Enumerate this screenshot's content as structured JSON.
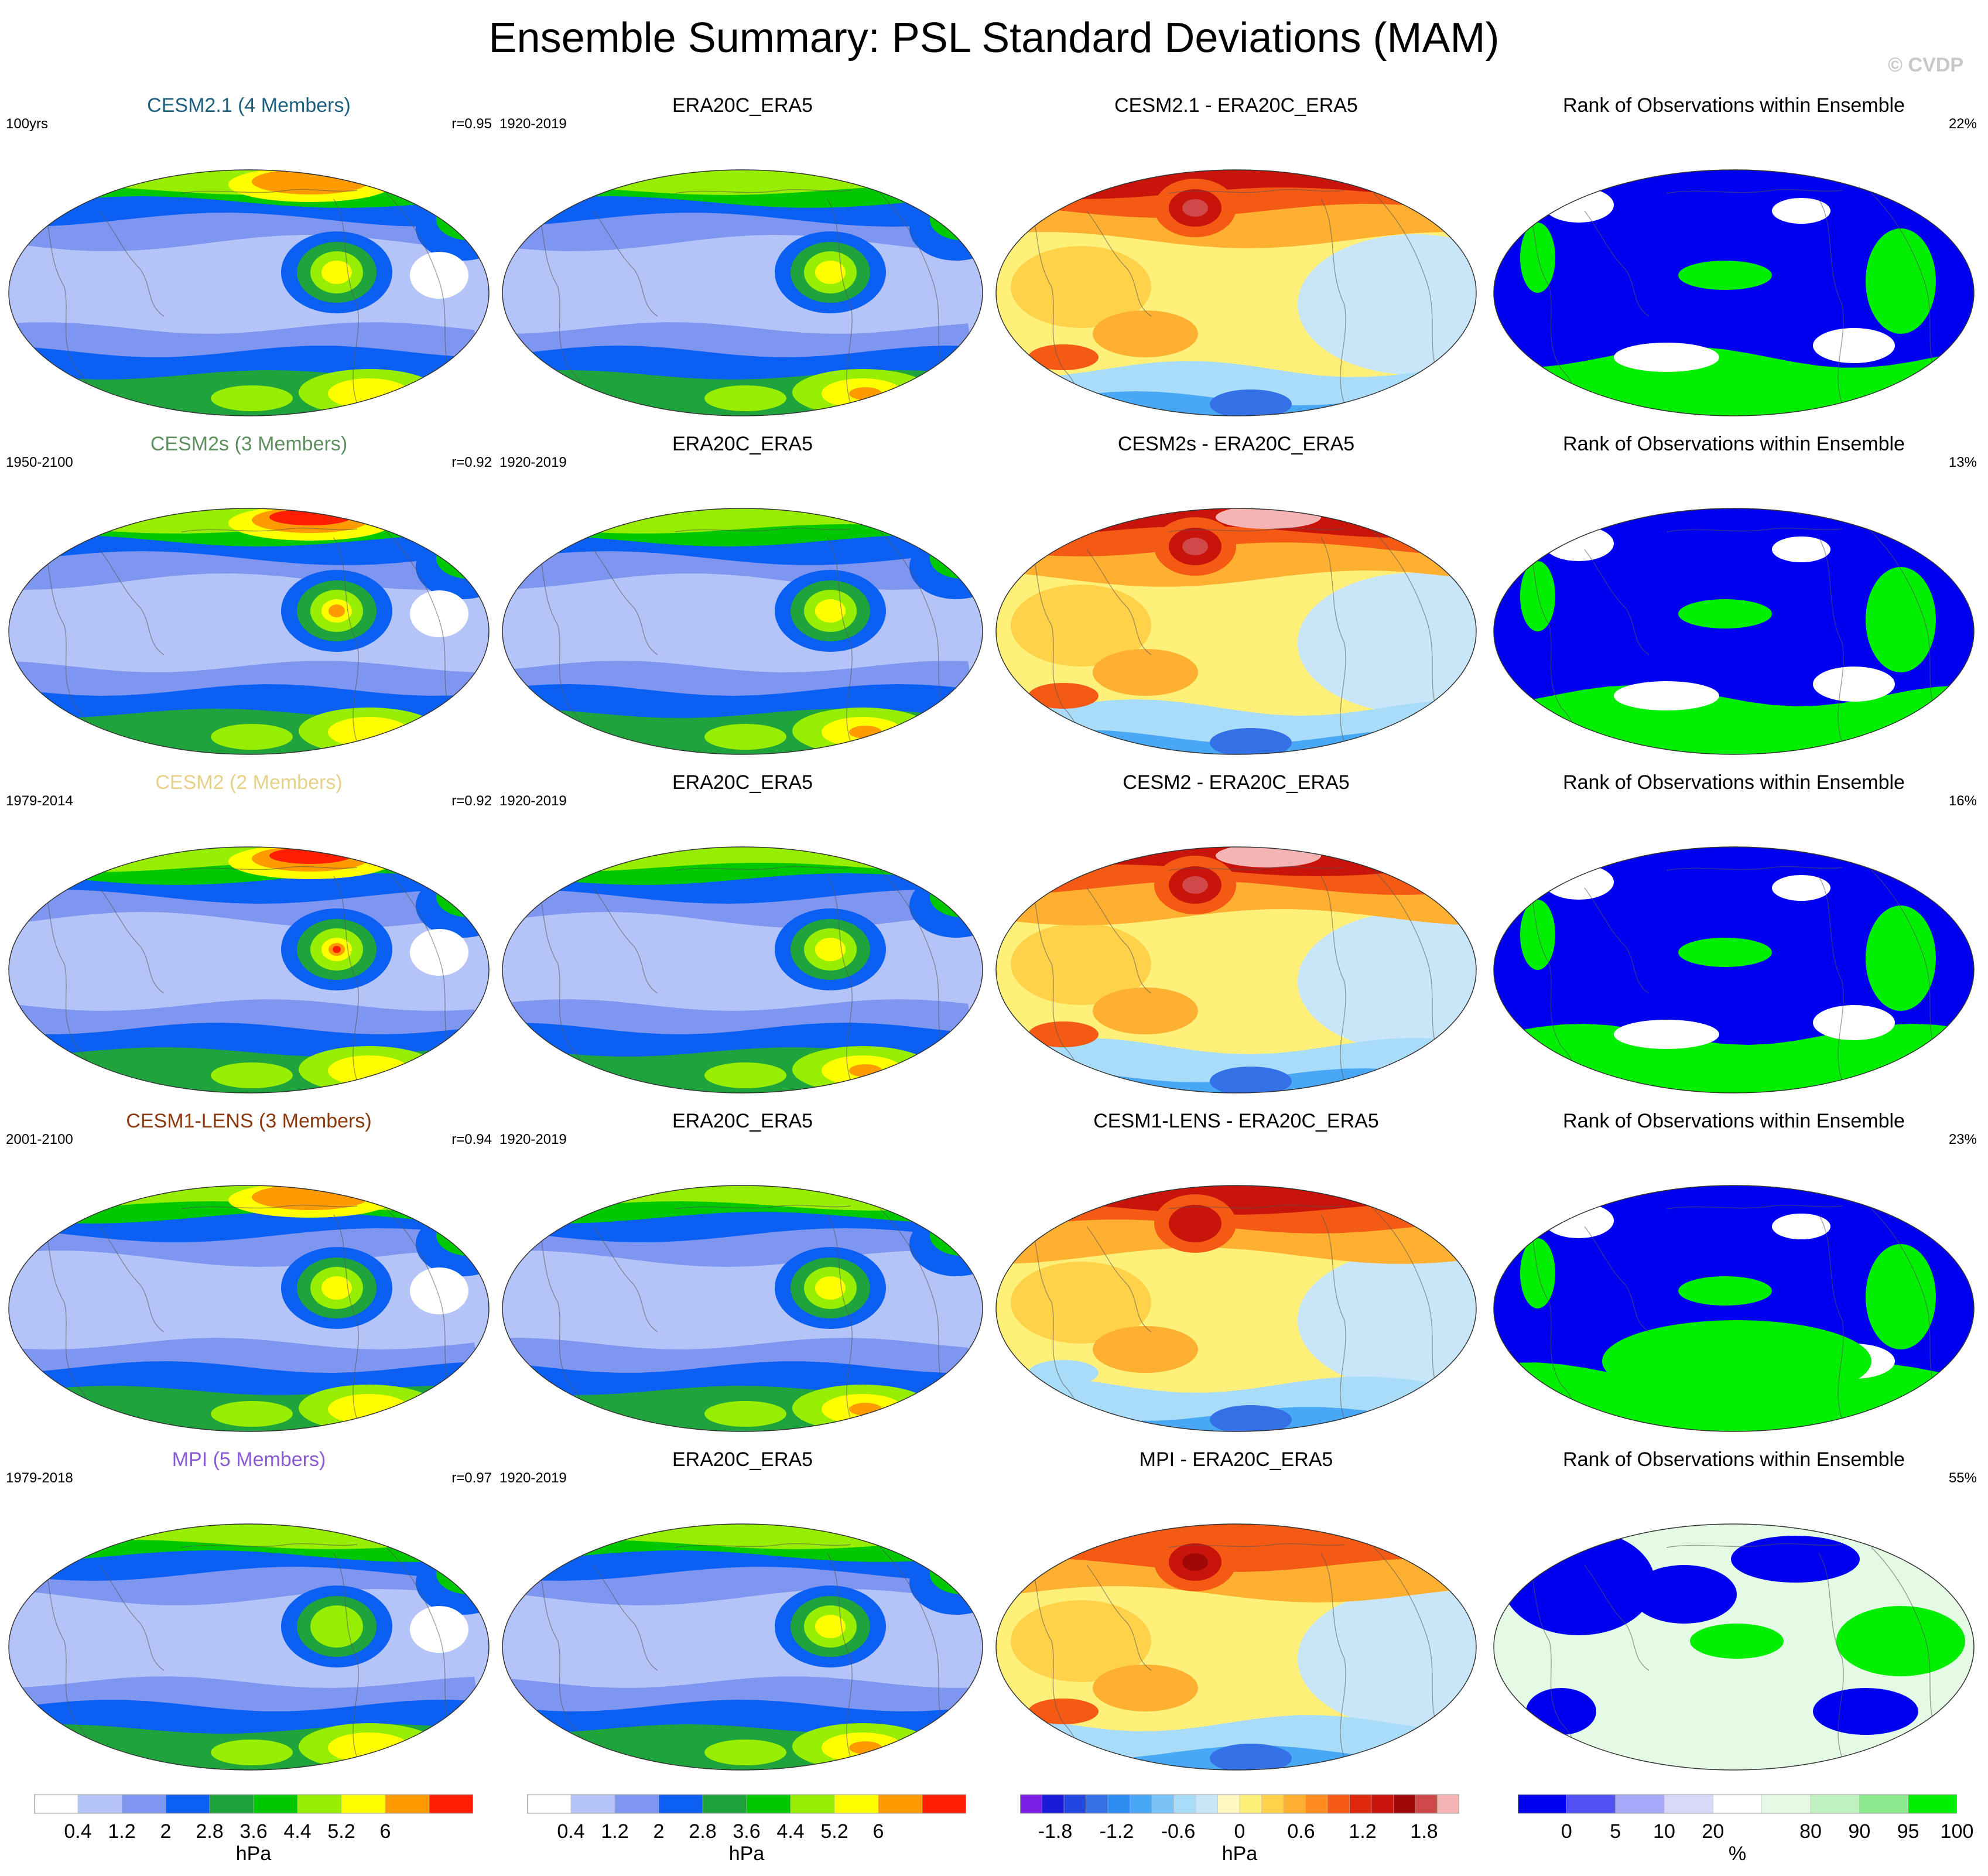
{
  "title": "Ensemble Summary: PSL Standard Deviations (MAM)",
  "credit": "© CVDP",
  "rows": [
    {
      "model": {
        "title": "CESM2.1 (4 Members)",
        "color": "#1c5f7f",
        "left": "100yrs",
        "right": "r=0.95",
        "kind": "model",
        "level": 6
      },
      "obs": {
        "title": "ERA20C_ERA5",
        "left": "1920-2019"
      },
      "diff": {
        "title": "CESM2.1 - ERA20C_ERA5",
        "variant": 1
      },
      "rank": {
        "title": "Rank of Observations within Ensemble",
        "right": "22%",
        "variant": 1
      }
    },
    {
      "model": {
        "title": "CESM2s (3 Members)",
        "color": "#5f8f5f",
        "left": "1950-2100",
        "right": "r=0.92",
        "kind": "model",
        "level": 7
      },
      "obs": {
        "title": "ERA20C_ERA5",
        "left": "1920-2019"
      },
      "diff": {
        "title": "CESM2s - ERA20C_ERA5",
        "variant": 2
      },
      "rank": {
        "title": "Rank of Observations within Ensemble",
        "right": "13%",
        "variant": 2
      }
    },
    {
      "model": {
        "title": "CESM2 (2 Members)",
        "color": "#e6d08a",
        "left": "1979-2014",
        "right": "r=0.92",
        "kind": "model",
        "level": 8
      },
      "obs": {
        "title": "ERA20C_ERA5",
        "left": "1920-2019"
      },
      "diff": {
        "title": "CESM2 - ERA20C_ERA5",
        "variant": 3
      },
      "rank": {
        "title": "Rank of Observations within Ensemble",
        "right": "16%",
        "variant": 3
      }
    },
    {
      "model": {
        "title": "CESM1-LENS (3 Members)",
        "color": "#8b3a0f",
        "left": "2001-2100",
        "right": "r=0.94",
        "kind": "model",
        "level": 6
      },
      "obs": {
        "title": "ERA20C_ERA5",
        "left": "1920-2019"
      },
      "diff": {
        "title": "CESM1-LENS - ERA20C_ERA5",
        "variant": 4
      },
      "rank": {
        "title": "Rank of Observations within Ensemble",
        "right": "23%",
        "variant": 4
      }
    },
    {
      "model": {
        "title": "MPI (5 Members)",
        "color": "#8a5ad6",
        "left": "1979-2018",
        "right": "r=0.97",
        "kind": "model",
        "level": 4
      },
      "obs": {
        "title": "ERA20C_ERA5",
        "left": "1920-2019"
      },
      "diff": {
        "title": "MPI - ERA20C_ERA5",
        "variant": 5
      },
      "rank": {
        "title": "Rank of Observations within Ensemble",
        "right": "55%",
        "variant": 5
      }
    }
  ],
  "colorbars": {
    "sd": {
      "colors": [
        "#ffffff",
        "#b4c4f8",
        "#7f96f0",
        "#0b5ff2",
        "#1ea33d",
        "#00c800",
        "#98ee00",
        "#ffff00",
        "#ff9a00",
        "#ff1e00"
      ],
      "labels": [
        "0.4",
        "1.2",
        "2",
        "2.8",
        "3.6",
        "4.4",
        "5.2",
        "6"
      ],
      "unit": "hPa"
    },
    "diff": {
      "colors": [
        "#7a1ee6",
        "#1a1ad8",
        "#2246e0",
        "#3470e6",
        "#2e8cf0",
        "#48a8f6",
        "#78c2f6",
        "#a8dcf8",
        "#c8e6f8",
        "#fff8c0",
        "#fff07a",
        "#ffd24a",
        "#ffb030",
        "#ff8a1e",
        "#f55a14",
        "#e0280e",
        "#c8140a",
        "#a00808",
        "#d04848",
        "#f4b4b4"
      ],
      "labels": [
        "-1.8",
        "-1.2",
        "-0.6",
        "0",
        "0.6",
        "1.2",
        "1.8"
      ],
      "unit": "hPa"
    },
    "rank": {
      "colors": [
        "#0000f0",
        "#5050f4",
        "#a8a8f8",
        "#d8d8fa",
        "#ffffff",
        "#e4fae4",
        "#c0f2c0",
        "#8ce88c",
        "#00ee00"
      ],
      "labels": [
        "0",
        "5",
        "10",
        "20",
        "80",
        "90",
        "95",
        "100"
      ],
      "unit": "%"
    }
  }
}
